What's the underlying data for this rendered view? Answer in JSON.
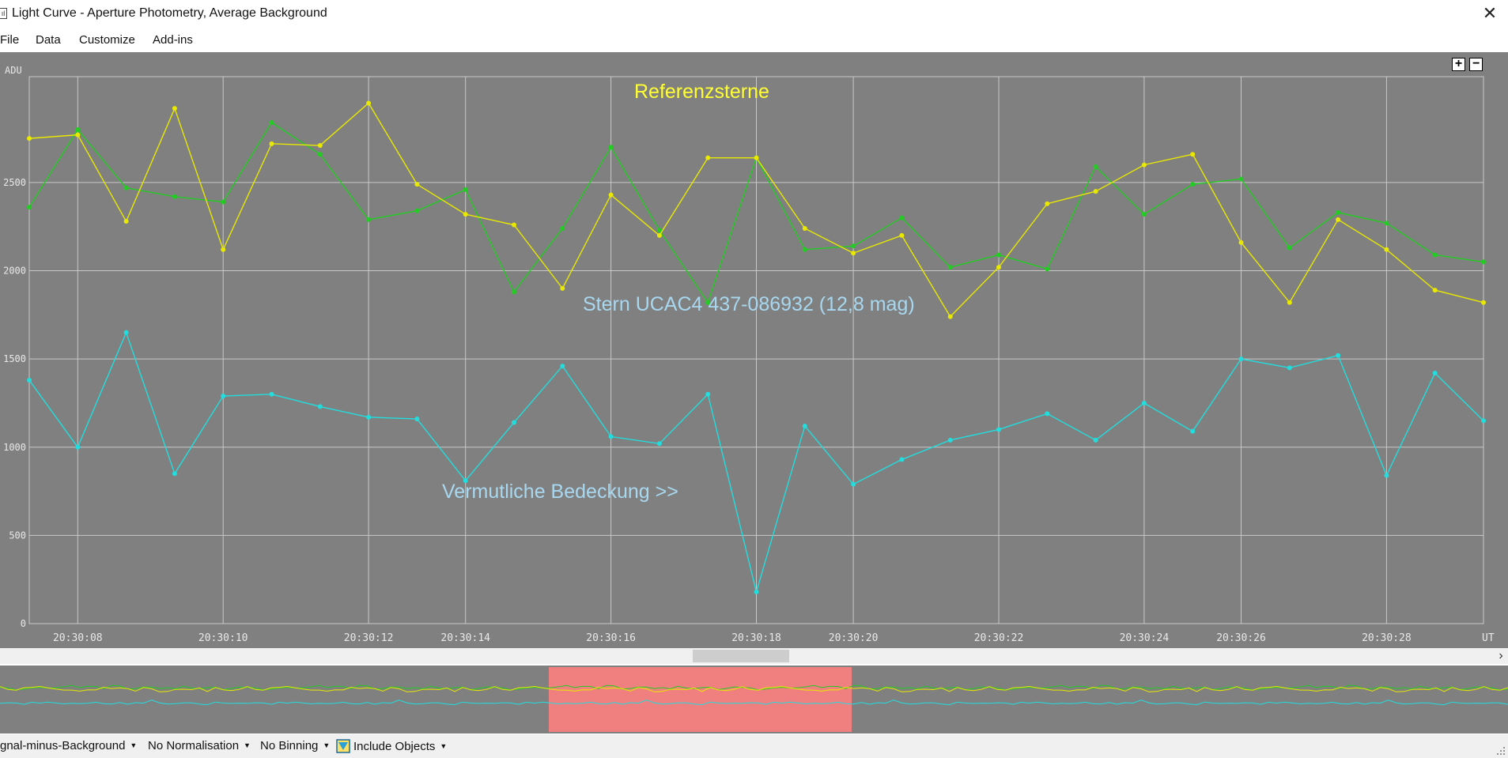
{
  "window": {
    "title": "Light Curve - Aperture Photometry, Average Background",
    "app_icon": "chart-icon",
    "close_glyph": "✕"
  },
  "menu": [
    {
      "label": "File"
    },
    {
      "label": "Data"
    },
    {
      "label": "Customize"
    },
    {
      "label": "Add-ins"
    }
  ],
  "zoom": {
    "plus": "+",
    "minus": "−"
  },
  "chart_data": {
    "type": "line",
    "ylabel": "ADU",
    "xlabel": "UT",
    "ylim": [
      0,
      3100
    ],
    "xlim": [
      7.0,
      37.0
    ],
    "y_ticks": [
      0,
      500,
      1000,
      1500,
      2000,
      2500
    ],
    "x_ticks": [
      {
        "value": 8,
        "label": "20:30:08"
      },
      {
        "value": 11,
        "label": "20:30:10"
      },
      {
        "value": 14,
        "label": "20:30:12"
      },
      {
        "value": 16,
        "label": "20:30:14"
      },
      {
        "value": 19,
        "label": "20:30:16"
      },
      {
        "value": 22,
        "label": "20:30:18"
      },
      {
        "value": 24,
        "label": "20:30:20"
      },
      {
        "value": 27,
        "label": "20:30:22"
      },
      {
        "value": 30,
        "label": "20:30:24"
      },
      {
        "value": 32,
        "label": "20:30:26"
      },
      {
        "value": 35,
        "label": "20:30:28"
      }
    ],
    "grid": true,
    "x": [
      7,
      8,
      9,
      10,
      11,
      12,
      13,
      14,
      15,
      16,
      17,
      18,
      19,
      20,
      21,
      22,
      23,
      24,
      25,
      26,
      27,
      28,
      29,
      30,
      31,
      32,
      33,
      34,
      35,
      36,
      37
    ],
    "series": [
      {
        "color": "#22cc22",
        "values": [
          2360,
          2800,
          2470,
          2420,
          2390,
          2840,
          2660,
          2290,
          2340,
          2460,
          1880,
          2240,
          2700,
          2230,
          1820,
          2640,
          2120,
          2140,
          2300,
          2020,
          2090,
          2010,
          2590,
          2320,
          2490,
          2520,
          2130,
          2330,
          2270,
          2090,
          2050
        ]
      },
      {
        "color": "#e8e800",
        "values": [
          2750,
          2770,
          2280,
          2920,
          2120,
          2720,
          2710,
          2950,
          2490,
          2320,
          2260,
          1900,
          2430,
          2200,
          2640,
          2640,
          2240,
          2100,
          2200,
          1740,
          2020,
          2380,
          2450,
          2600,
          2660,
          2160,
          1820,
          2290,
          2120,
          1890,
          1820
        ]
      },
      {
        "color": "#22dddd",
        "values": [
          1380,
          1000,
          1650,
          850,
          1290,
          1300,
          1230,
          1170,
          1160,
          810,
          1140,
          1460,
          1060,
          1020,
          1300,
          180,
          1120,
          790,
          930,
          1040,
          1100,
          1190,
          1040,
          1250,
          1090,
          1500,
          1450,
          1520,
          840,
          1420,
          1150
        ]
      }
    ],
    "annotations": [
      {
        "text": "Referenzsterne",
        "color": "#ffff33"
      },
      {
        "text": "Stern UCAC4  437-086932 (12,8 mag)",
        "color": "#a8d8f0"
      },
      {
        "text": "Vermutliche Bedeckung  >>",
        "color": "#a8d8f0"
      }
    ]
  },
  "overview": {
    "selection_color": "#f08080"
  },
  "status": [
    {
      "label": "gnal-minus-Background",
      "caret": "▼"
    },
    {
      "label": "No Normalisation",
      "caret": "▼"
    },
    {
      "label": "No Binning",
      "caret": "▼"
    },
    {
      "label": "Include Objects",
      "caret": "▼",
      "icon": "include-objects-icon"
    }
  ]
}
